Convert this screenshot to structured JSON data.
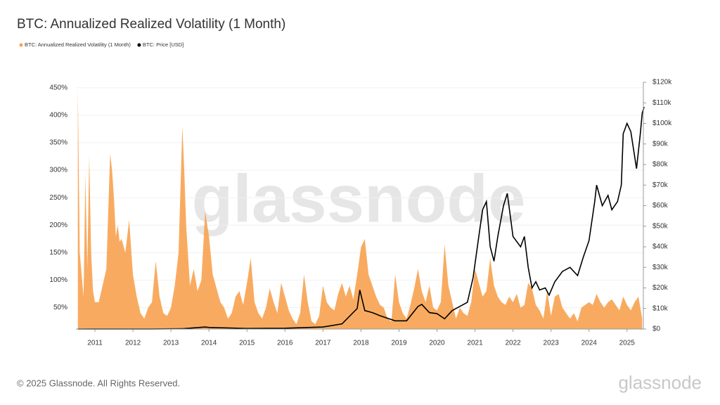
{
  "chart_data": {
    "type": "area_line",
    "title": "BTC: Annualized Realized Volatility (1 Month)",
    "watermark": "glassnode",
    "footer": "© 2025 Glassnode. All Rights Reserved.",
    "brand": "glassnode",
    "xlim": [
      2010.5,
      2025.43
    ],
    "xticks": [
      2011,
      2012,
      2013,
      2014,
      2015,
      2016,
      2017,
      2018,
      2019,
      2020,
      2021,
      2022,
      2023,
      2024,
      2025
    ],
    "ylim": [
      11,
      460
    ],
    "yticks": [
      {
        "value": 50,
        "label": "50%"
      },
      {
        "value": 100,
        "label": "100%"
      },
      {
        "value": 150,
        "label": "150%"
      },
      {
        "value": 200,
        "label": "200%"
      },
      {
        "value": 250,
        "label": "250%"
      },
      {
        "value": 300,
        "label": "300%"
      },
      {
        "value": 350,
        "label": "350%"
      },
      {
        "value": 400,
        "label": "400%"
      },
      {
        "value": 450,
        "label": "450%"
      }
    ],
    "y2lim": [
      0,
      120000
    ],
    "y2ticks": [
      {
        "value": 0,
        "label": "$0"
      },
      {
        "value": 10000,
        "label": "$10k"
      },
      {
        "value": 20000,
        "label": "$20k"
      },
      {
        "value": 30000,
        "label": "$30k"
      },
      {
        "value": 40000,
        "label": "$40k"
      },
      {
        "value": 50000,
        "label": "$50k"
      },
      {
        "value": 60000,
        "label": "$60k"
      },
      {
        "value": 70000,
        "label": "$70k"
      },
      {
        "value": 80000,
        "label": "$80k"
      },
      {
        "value": 90000,
        "label": "$90k"
      },
      {
        "value": 100000,
        "label": "$100k"
      },
      {
        "value": 110000,
        "label": "$110k"
      },
      {
        "value": 120000,
        "label": "$120k"
      }
    ],
    "grid": true,
    "series": [
      {
        "name": "BTC: Annualized Realized Volatility (1 Month)",
        "color": "#f7a24f",
        "kind": "area",
        "axis": "y",
        "x": [
          2010.55,
          2010.6,
          2010.65,
          2010.7,
          2010.75,
          2010.8,
          2010.85,
          2010.9,
          2010.95,
          2011.0,
          2011.1,
          2011.2,
          2011.3,
          2011.4,
          2011.45,
          2011.5,
          2011.55,
          2011.6,
          2011.65,
          2011.7,
          2011.8,
          2011.9,
          2012.0,
          2012.1,
          2012.2,
          2012.3,
          2012.4,
          2012.5,
          2012.6,
          2012.7,
          2012.8,
          2012.9,
          2013.0,
          2013.1,
          2013.2,
          2013.3,
          2013.35,
          2013.4,
          2013.5,
          2013.6,
          2013.7,
          2013.8,
          2013.9,
          2014.0,
          2014.1,
          2014.2,
          2014.3,
          2014.4,
          2014.5,
          2014.6,
          2014.7,
          2014.8,
          2014.9,
          2015.0,
          2015.1,
          2015.2,
          2015.3,
          2015.4,
          2015.5,
          2015.6,
          2015.7,
          2015.8,
          2015.9,
          2016.0,
          2016.1,
          2016.2,
          2016.3,
          2016.4,
          2016.5,
          2016.6,
          2016.7,
          2016.8,
          2016.9,
          2017.0,
          2017.1,
          2017.2,
          2017.3,
          2017.4,
          2017.5,
          2017.6,
          2017.7,
          2017.8,
          2017.9,
          2018.0,
          2018.1,
          2018.2,
          2018.3,
          2018.4,
          2018.5,
          2018.6,
          2018.7,
          2018.8,
          2018.9,
          2019.0,
          2019.1,
          2019.2,
          2019.3,
          2019.4,
          2019.5,
          2019.6,
          2019.7,
          2019.8,
          2019.9,
          2020.0,
          2020.1,
          2020.2,
          2020.3,
          2020.4,
          2020.5,
          2020.6,
          2020.7,
          2020.8,
          2020.9,
          2021.0,
          2021.1,
          2021.2,
          2021.3,
          2021.4,
          2021.5,
          2021.6,
          2021.7,
          2021.8,
          2021.9,
          2022.0,
          2022.1,
          2022.2,
          2022.3,
          2022.4,
          2022.5,
          2022.6,
          2022.7,
          2022.8,
          2022.9,
          2023.0,
          2023.1,
          2023.2,
          2023.3,
          2023.4,
          2023.5,
          2023.6,
          2023.7,
          2023.8,
          2023.9,
          2024.0,
          2024.1,
          2024.2,
          2024.3,
          2024.4,
          2024.5,
          2024.6,
          2024.7,
          2024.8,
          2024.9,
          2025.0,
          2025.1,
          2025.2,
          2025.3,
          2025.4
        ],
        "values": [
          450,
          150,
          110,
          70,
          290,
          120,
          325,
          150,
          80,
          60,
          60,
          90,
          120,
          330,
          300,
          250,
          180,
          200,
          170,
          175,
          150,
          210,
          110,
          70,
          40,
          30,
          50,
          60,
          135,
          70,
          40,
          35,
          50,
          90,
          150,
          380,
          300,
          200,
          90,
          120,
          80,
          100,
          225,
          180,
          110,
          85,
          60,
          50,
          30,
          40,
          70,
          80,
          55,
          95,
          140,
          60,
          40,
          30,
          50,
          85,
          60,
          40,
          95,
          70,
          45,
          30,
          20,
          40,
          110,
          60,
          25,
          20,
          35,
          90,
          60,
          50,
          45,
          75,
          95,
          70,
          90,
          65,
          110,
          160,
          175,
          110,
          90,
          70,
          55,
          50,
          30,
          25,
          110,
          60,
          40,
          30,
          55,
          85,
          120,
          80,
          60,
          90,
          50,
          45,
          60,
          165,
          90,
          60,
          30,
          50,
          40,
          35,
          60,
          120,
          95,
          70,
          80,
          140,
          90,
          70,
          60,
          55,
          70,
          60,
          75,
          50,
          55,
          95,
          85,
          55,
          45,
          30,
          80,
          35,
          70,
          75,
          50,
          40,
          30,
          40,
          25,
          50,
          55,
          60,
          55,
          75,
          60,
          50,
          60,
          65,
          55,
          45,
          70,
          55,
          45,
          60,
          70,
          30
        ]
      },
      {
        "name": "BTC: Price [USD]",
        "color": "#000000",
        "kind": "line",
        "axis": "y2",
        "x": [
          2010.55,
          2011.5,
          2012.5,
          2013.3,
          2013.9,
          2014.0,
          2015.0,
          2016.0,
          2017.0,
          2017.5,
          2017.9,
          2017.97,
          2018.1,
          2018.3,
          2018.5,
          2018.9,
          2019.2,
          2019.5,
          2019.6,
          2019.8,
          2020.0,
          2020.2,
          2020.4,
          2020.6,
          2020.8,
          2020.95,
          2021.1,
          2021.2,
          2021.3,
          2021.4,
          2021.5,
          2021.6,
          2021.75,
          2021.85,
          2022.0,
          2022.2,
          2022.3,
          2022.4,
          2022.5,
          2022.6,
          2022.7,
          2022.85,
          2022.95,
          2023.1,
          2023.3,
          2023.5,
          2023.7,
          2023.85,
          2024.0,
          2024.15,
          2024.2,
          2024.35,
          2024.5,
          2024.6,
          2024.75,
          2024.85,
          2024.9,
          2025.0,
          2025.1,
          2025.2,
          2025.25,
          2025.35,
          2025.4,
          2025.45
        ],
        "values": [
          0,
          15,
          10,
          150,
          1000,
          800,
          300,
          400,
          1000,
          2500,
          10000,
          19000,
          9000,
          8000,
          6500,
          4000,
          4000,
          11000,
          12000,
          8000,
          7500,
          5000,
          9000,
          11000,
          13000,
          25000,
          45000,
          58000,
          62000,
          40000,
          33000,
          45000,
          60000,
          66000,
          45000,
          40000,
          45000,
          30000,
          20000,
          23000,
          19000,
          20000,
          16500,
          23000,
          28000,
          30000,
          26000,
          35000,
          43000,
          62000,
          70000,
          60000,
          65000,
          58000,
          62000,
          70000,
          95000,
          100000,
          96000,
          84000,
          78000,
          95000,
          105000,
          108000
        ]
      }
    ]
  }
}
